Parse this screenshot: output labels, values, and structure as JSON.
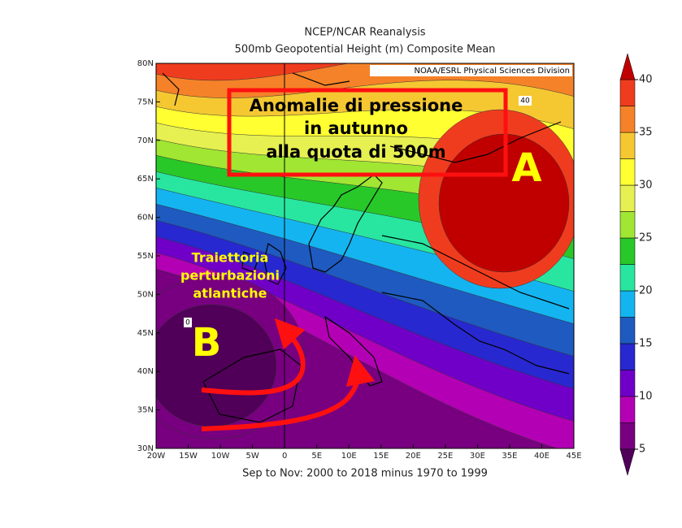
{
  "title": [
    "NCEP/NCAR Reanalysis",
    "500mb Geopotential Height (m) Composite Mean"
  ],
  "credit": "NOAA/ESRL Physical Sciences Division",
  "caption": "Sep to Nov: 2000 to 2018 minus 1970 to 1999",
  "annotation": {
    "heading": [
      "Anomalie di pressione",
      "in autunno",
      "alla quota di 500m"
    ],
    "high": "A",
    "low": "B",
    "track": [
      "Traiettoria",
      "perturbazioni",
      "atlantiche"
    ]
  },
  "contour_labels": [
    "40",
    "0"
  ],
  "axes": {
    "lon": [
      "20W",
      "15W",
      "10W",
      "5W",
      "0",
      "5E",
      "10E",
      "15E",
      "20E",
      "25E",
      "30E",
      "35E",
      "40E",
      "45E"
    ],
    "lat": [
      "30N",
      "35N",
      "40N",
      "45N",
      "50N",
      "55N",
      "60N",
      "65N",
      "70N",
      "75N",
      "80N"
    ]
  },
  "colorbar": {
    "ticks": [
      5,
      10,
      15,
      20,
      25,
      30,
      35,
      40
    ],
    "colors": [
      "#500058",
      "#780080",
      "#b400b4",
      "#7000c8",
      "#2828d0",
      "#1e5ac0",
      "#14b4f0",
      "#28e6a0",
      "#28c828",
      "#a0e632",
      "#e6f050",
      "#ffff32",
      "#f5c832",
      "#f58228",
      "#f03c1e",
      "#c00000"
    ]
  }
}
